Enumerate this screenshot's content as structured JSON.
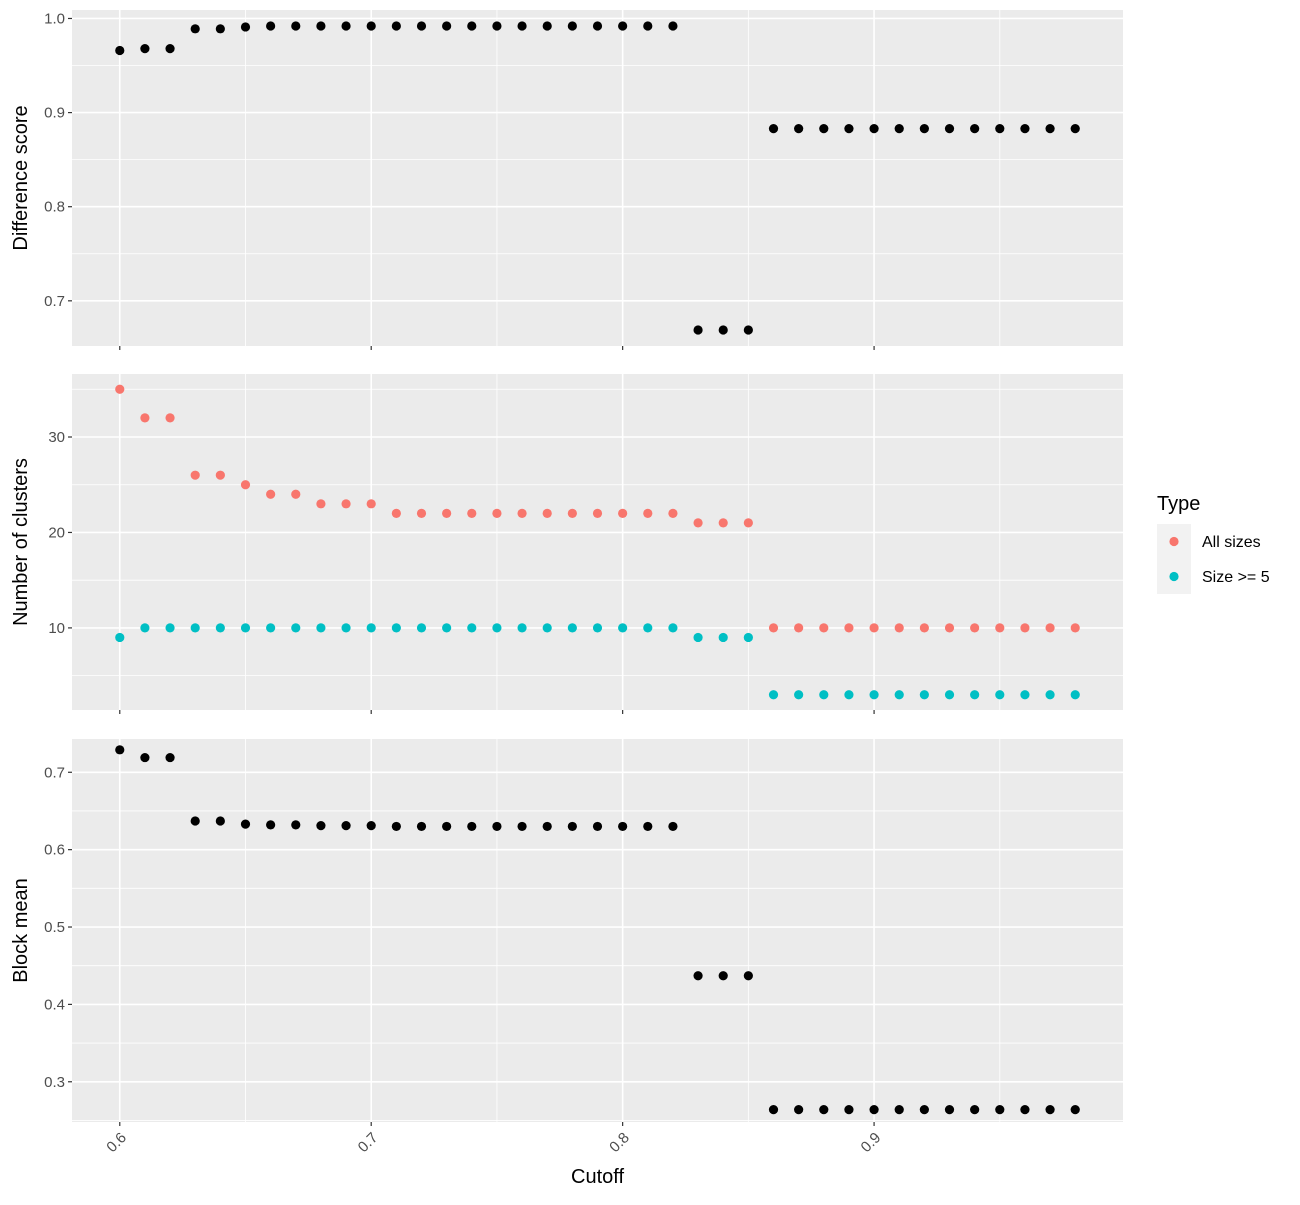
{
  "chart_data": [
    {
      "type": "scatter",
      "xlabel": "",
      "ylabel": "Difference score",
      "xlim": [
        0.581,
        0.999
      ],
      "ylim": [
        0.652,
        1.009
      ],
      "yticks": [
        0.7,
        0.8,
        0.9,
        1.0
      ],
      "ytick_labels": [
        "0.7",
        "0.8",
        "0.9",
        "1.0"
      ],
      "grid": true,
      "series": [
        {
          "color": "#000000",
          "x": [
            0.6,
            0.61,
            0.62,
            0.63,
            0.64,
            0.65,
            0.66,
            0.67,
            0.68,
            0.69,
            0.7,
            0.71,
            0.72,
            0.73,
            0.74,
            0.75,
            0.76,
            0.77,
            0.78,
            0.79,
            0.8,
            0.81,
            0.82,
            0.83,
            0.84,
            0.85,
            0.86,
            0.87,
            0.88,
            0.89,
            0.9,
            0.91,
            0.92,
            0.93,
            0.94,
            0.95,
            0.96,
            0.97,
            0.98
          ],
          "y": [
            0.966,
            0.968,
            0.968,
            0.989,
            0.989,
            0.991,
            0.992,
            0.992,
            0.992,
            0.992,
            0.992,
            0.992,
            0.992,
            0.992,
            0.992,
            0.992,
            0.992,
            0.992,
            0.992,
            0.992,
            0.992,
            0.992,
            0.992,
            0.669,
            0.669,
            0.669,
            0.883,
            0.883,
            0.883,
            0.883,
            0.883,
            0.883,
            0.883,
            0.883,
            0.883,
            0.883,
            0.883,
            0.883,
            0.883
          ]
        }
      ]
    },
    {
      "type": "scatter",
      "xlabel": "",
      "ylabel": "Number of clusters",
      "xlim": [
        0.581,
        0.999
      ],
      "ylim": [
        1.4,
        36.6
      ],
      "yticks": [
        10,
        20,
        30
      ],
      "ytick_labels": [
        "10",
        "20",
        "30"
      ],
      "grid": true,
      "legend_position": "right",
      "legend_title": "Type",
      "series": [
        {
          "name": "All sizes",
          "color": "#F8766D",
          "x": [
            0.6,
            0.61,
            0.62,
            0.63,
            0.64,
            0.65,
            0.66,
            0.67,
            0.68,
            0.69,
            0.7,
            0.71,
            0.72,
            0.73,
            0.74,
            0.75,
            0.76,
            0.77,
            0.78,
            0.79,
            0.8,
            0.81,
            0.82,
            0.83,
            0.84,
            0.85,
            0.86,
            0.87,
            0.88,
            0.89,
            0.9,
            0.91,
            0.92,
            0.93,
            0.94,
            0.95,
            0.96,
            0.97,
            0.98
          ],
          "y": [
            35,
            32,
            32,
            26,
            26,
            25,
            24,
            24,
            23,
            23,
            23,
            22,
            22,
            22,
            22,
            22,
            22,
            22,
            22,
            22,
            22,
            22,
            22,
            21,
            21,
            21,
            10,
            10,
            10,
            10,
            10,
            10,
            10,
            10,
            10,
            10,
            10,
            10,
            10
          ]
        },
        {
          "name": "Size >= 5",
          "color": "#00BFC4",
          "x": [
            0.6,
            0.61,
            0.62,
            0.63,
            0.64,
            0.65,
            0.66,
            0.67,
            0.68,
            0.69,
            0.7,
            0.71,
            0.72,
            0.73,
            0.74,
            0.75,
            0.76,
            0.77,
            0.78,
            0.79,
            0.8,
            0.81,
            0.82,
            0.83,
            0.84,
            0.85,
            0.86,
            0.87,
            0.88,
            0.89,
            0.9,
            0.91,
            0.92,
            0.93,
            0.94,
            0.95,
            0.96,
            0.97,
            0.98
          ],
          "y": [
            9,
            10,
            10,
            10,
            10,
            10,
            10,
            10,
            10,
            10,
            10,
            10,
            10,
            10,
            10,
            10,
            10,
            10,
            10,
            10,
            10,
            10,
            10,
            9,
            9,
            9,
            3,
            3,
            3,
            3,
            3,
            3,
            3,
            3,
            3,
            3,
            3,
            3,
            3
          ]
        }
      ]
    },
    {
      "type": "scatter",
      "xlabel": "Cutoff",
      "ylabel": "Block mean",
      "xlim": [
        0.581,
        0.999
      ],
      "ylim": [
        0.248,
        0.743
      ],
      "yticks": [
        0.3,
        0.4,
        0.5,
        0.6,
        0.7
      ],
      "ytick_labels": [
        "0.3",
        "0.4",
        "0.5",
        "0.6",
        "0.7"
      ],
      "xticks": [
        0.6,
        0.7,
        0.8,
        0.9
      ],
      "xtick_labels": [
        "0.6",
        "0.7",
        "0.8",
        "0.9"
      ],
      "grid": true,
      "series": [
        {
          "color": "#000000",
          "x": [
            0.6,
            0.61,
            0.62,
            0.63,
            0.64,
            0.65,
            0.66,
            0.67,
            0.68,
            0.69,
            0.7,
            0.71,
            0.72,
            0.73,
            0.74,
            0.75,
            0.76,
            0.77,
            0.78,
            0.79,
            0.8,
            0.81,
            0.82,
            0.83,
            0.84,
            0.85,
            0.86,
            0.87,
            0.88,
            0.89,
            0.9,
            0.91,
            0.92,
            0.93,
            0.94,
            0.95,
            0.96,
            0.97,
            0.98
          ],
          "y": [
            0.729,
            0.719,
            0.719,
            0.637,
            0.637,
            0.633,
            0.632,
            0.632,
            0.631,
            0.631,
            0.631,
            0.63,
            0.63,
            0.63,
            0.63,
            0.63,
            0.63,
            0.63,
            0.63,
            0.63,
            0.63,
            0.63,
            0.63,
            0.437,
            0.437,
            0.437,
            0.264,
            0.264,
            0.264,
            0.264,
            0.264,
            0.264,
            0.264,
            0.264,
            0.264,
            0.264,
            0.264,
            0.264,
            0.264
          ]
        }
      ]
    }
  ]
}
